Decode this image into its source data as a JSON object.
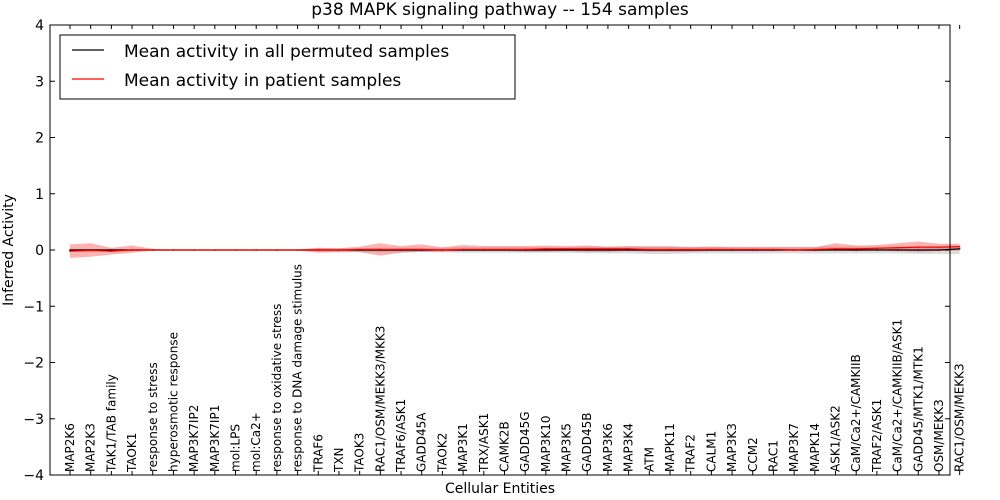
{
  "chart_data": {
    "type": "line",
    "title": "p38 MAPK signaling pathway -- 154 samples",
    "xlabel": "Cellular Entities",
    "ylabel": "Inferred Activity",
    "ylim": [
      -4,
      4
    ],
    "yticks": [
      -4,
      -3,
      -2,
      -1,
      0,
      1,
      2,
      3,
      4
    ],
    "ytick_labels": [
      "−4",
      "−3",
      "−2",
      "−1",
      "0",
      "1",
      "2",
      "3",
      "4"
    ],
    "grid": false,
    "legend": {
      "location": "top-left",
      "entries": [
        {
          "label": "Mean activity in all permuted samples",
          "color": "#000000"
        },
        {
          "label": "Mean activity in patient samples",
          "color": "#ff0000"
        }
      ]
    },
    "categories": [
      "MAP2K6",
      "MAP2K3",
      "TAK1/TAB family",
      "TAOK1",
      "response to stress",
      "hyperosmotic response",
      "MAP3K7IP2",
      "MAP3K7IP1",
      "mol:LPS",
      "mol:Ca2+",
      "response to oxidative stress",
      "response to DNA damage stimulus",
      "TRAF6",
      "TXN",
      "TAOK3",
      "RAC1/OSM/MEKK3/MKK3",
      "TRAF6/ASK1",
      "GADD45A",
      "TAOK2",
      "MAP3K1",
      "TRX/ASK1",
      "CAMK2B",
      "GADD45G",
      "MAP3K10",
      "MAP3K5",
      "GADD45B",
      "MAP3K6",
      "MAP3K4",
      "ATM",
      "MAPK11",
      "TRAF2",
      "CALM1",
      "MAP3K3",
      "CCM2",
      "RAC1",
      "MAP3K7",
      "MAPK14",
      "ASK1/ASK2",
      "CaM/Ca2+/CAMKIIB",
      "TRAF2/ASK1",
      "CaM/Ca2+/CAMKIIB/ASK1",
      "GADD45/MTK1/MTK1",
      "OSM/MEKK3",
      "RAC1/OSM/MEKK3"
    ],
    "series": [
      {
        "name": "Mean activity in all permuted samples",
        "color": "#000000",
        "values": [
          0,
          0,
          0,
          0,
          0,
          0,
          0,
          0,
          0,
          0,
          0,
          0,
          0,
          0,
          0,
          0,
          0,
          0,
          0,
          0,
          0,
          0,
          0,
          0,
          0,
          0,
          0,
          0,
          0,
          0,
          0,
          0,
          0,
          0,
          0,
          0,
          0,
          0,
          0,
          0,
          0,
          0,
          0,
          0.02
        ],
        "band_lower": [
          -0.02,
          -0.02,
          -0.02,
          -0.02,
          -0.01,
          -0.01,
          -0.01,
          -0.01,
          -0.01,
          -0.01,
          -0.01,
          -0.01,
          -0.03,
          -0.03,
          -0.03,
          -0.04,
          -0.04,
          -0.04,
          -0.04,
          -0.05,
          -0.05,
          -0.05,
          -0.05,
          -0.05,
          -0.05,
          -0.06,
          -0.06,
          -0.06,
          -0.07,
          -0.07,
          -0.06,
          -0.06,
          -0.06,
          -0.06,
          -0.06,
          -0.06,
          -0.06,
          -0.06,
          -0.06,
          -0.06,
          -0.06,
          -0.07,
          -0.07,
          -0.07
        ],
        "band_upper": [
          0.02,
          0.02,
          0.02,
          0.02,
          0.01,
          0.01,
          0.01,
          0.01,
          0.01,
          0.01,
          0.01,
          0.01,
          0.03,
          0.03,
          0.03,
          0.04,
          0.04,
          0.04,
          0.04,
          0.05,
          0.05,
          0.05,
          0.05,
          0.05,
          0.05,
          0.06,
          0.06,
          0.06,
          0.07,
          0.07,
          0.06,
          0.06,
          0.06,
          0.06,
          0.06,
          0.06,
          0.06,
          0.06,
          0.06,
          0.06,
          0.06,
          0.07,
          0.07,
          0.08
        ]
      },
      {
        "name": "Mean activity in patient samples",
        "color": "#ff0000",
        "values": [
          -0.02,
          -0.01,
          -0.02,
          0.0,
          0.0,
          0.0,
          0.0,
          0.0,
          0.0,
          0.0,
          0.0,
          0.0,
          0.0,
          0.0,
          0.01,
          0.01,
          0.01,
          0.01,
          0.0,
          0.01,
          0.01,
          0.01,
          0.01,
          0.02,
          0.02,
          0.02,
          0.02,
          0.02,
          0.01,
          0.01,
          0.01,
          0.01,
          0.01,
          0.01,
          0.01,
          0.0,
          0.01,
          0.02,
          0.02,
          0.03,
          0.04,
          0.05,
          0.05,
          0.06
        ],
        "band_lower": [
          -0.14,
          -0.12,
          -0.08,
          -0.05,
          -0.01,
          -0.01,
          -0.01,
          -0.01,
          -0.01,
          -0.01,
          -0.01,
          -0.01,
          -0.05,
          -0.04,
          -0.04,
          -0.1,
          -0.05,
          -0.03,
          -0.03,
          -0.02,
          -0.02,
          -0.02,
          -0.03,
          -0.03,
          -0.02,
          -0.03,
          -0.03,
          -0.02,
          -0.03,
          -0.03,
          -0.03,
          -0.02,
          -0.02,
          -0.02,
          -0.02,
          -0.02,
          -0.02,
          -0.01,
          -0.02,
          -0.01,
          -0.02,
          -0.03,
          -0.02,
          -0.01
        ],
        "band_upper": [
          0.1,
          0.12,
          0.04,
          0.08,
          0.02,
          0.01,
          0.01,
          0.01,
          0.01,
          0.01,
          0.01,
          0.01,
          0.04,
          0.03,
          0.06,
          0.12,
          0.07,
          0.1,
          0.05,
          0.09,
          0.07,
          0.07,
          0.07,
          0.08,
          0.07,
          0.08,
          0.06,
          0.07,
          0.06,
          0.06,
          0.05,
          0.06,
          0.05,
          0.05,
          0.05,
          0.05,
          0.05,
          0.12,
          0.08,
          0.09,
          0.12,
          0.15,
          0.11,
          0.11
        ]
      }
    ]
  }
}
